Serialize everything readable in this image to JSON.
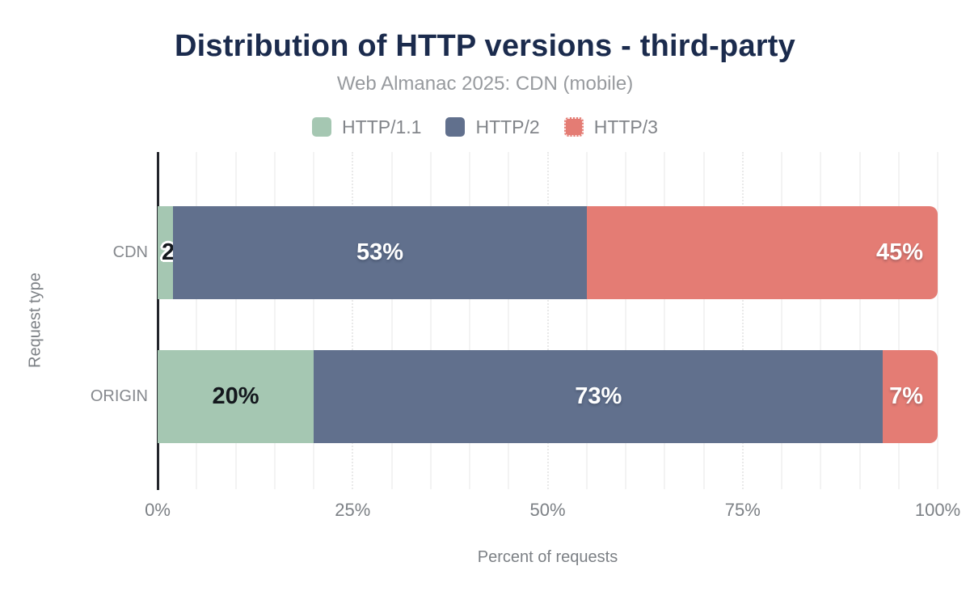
{
  "title": "Distribution of HTTP versions - third-party",
  "subtitle": "Web Almanac 2025: CDN (mobile)",
  "colors": {
    "title": "#1b2b4d",
    "muted_text": "#7c8085",
    "axis_line": "#23252b",
    "gridline": "#f3f3f3"
  },
  "chart_data": {
    "type": "bar",
    "orientation": "horizontal",
    "stacked": true,
    "title": "Distribution of HTTP versions - third-party",
    "subtitle": "Web Almanac 2025: CDN (mobile)",
    "categories": [
      "CDN",
      "ORIGIN"
    ],
    "series": [
      {
        "name": "HTTP/1.1",
        "color": "#a5c7b2",
        "pattern": "solid",
        "values": [
          2,
          20
        ]
      },
      {
        "name": "HTTP/2",
        "color": "#61708d",
        "pattern": "solid",
        "values": [
          53,
          73
        ]
      },
      {
        "name": "HTTP/3",
        "color": "#e47c74",
        "pattern": "dotted",
        "values": [
          45,
          7
        ]
      }
    ],
    "value_suffix": "%",
    "xlabel": "Percent of requests",
    "ylabel": "Request type",
    "xlim": [
      0,
      100
    ],
    "xticks": [
      "0%",
      "25%",
      "50%",
      "75%",
      "100%"
    ],
    "xtick_values": [
      0,
      25,
      50,
      75,
      100
    ],
    "minor_grid_step": 5,
    "major_grid_step": 25,
    "grid": "vertical",
    "legend_position": "top"
  }
}
